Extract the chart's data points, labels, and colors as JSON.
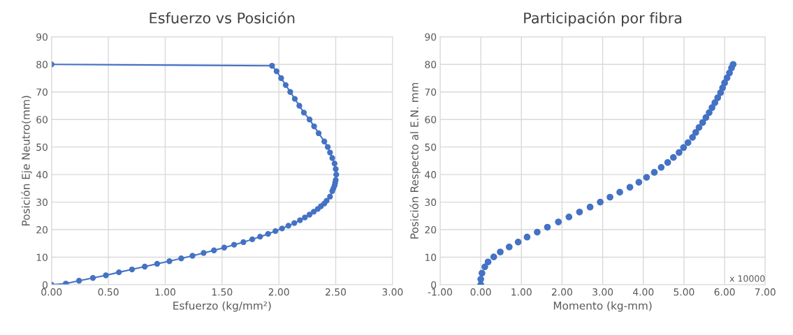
{
  "chart_data": [
    {
      "type": "line",
      "title": "Esfuerzo vs Posición",
      "xlabel": "Esfuerzo (kg/mm²)",
      "ylabel": "Posición Eje Neutro(mm)",
      "grid": true,
      "marker": "circle",
      "line_style": "solid",
      "xlim": [
        0,
        3
      ],
      "xticks": [
        {
          "value": 0,
          "label": "0.00"
        },
        {
          "value": 0.5,
          "label": "0.50"
        },
        {
          "value": 1,
          "label": "1.00"
        },
        {
          "value": 1.5,
          "label": "1.50"
        },
        {
          "value": 2,
          "label": "2.00"
        },
        {
          "value": 2.5,
          "label": "2.50"
        },
        {
          "value": 3,
          "label": "3.00"
        }
      ],
      "ylim": [
        0,
        90
      ],
      "yticks": [
        0,
        10,
        20,
        30,
        40,
        50,
        60,
        70,
        80,
        90
      ],
      "series": [
        {
          "color": "#4472c4",
          "x": [
            0,
            0.126,
            0.242,
            0.364,
            0.478,
            0.593,
            0.708,
            0.82,
            0.929,
            1.037,
            1.141,
            1.24,
            1.338,
            1.429,
            1.519,
            1.606,
            1.688,
            1.766,
            1.835,
            1.905,
            1.97,
            2.028,
            2.084,
            2.136,
            2.186,
            2.229,
            2.27,
            2.307,
            2.342,
            2.37,
            2.4,
            2.42,
            2.45,
            2.47,
            2.48,
            2.49,
            2.495,
            2.5,
            2.505,
            2.5,
            2.49,
            2.47,
            2.45,
            2.43,
            2.4,
            2.35,
            2.31,
            2.27,
            2.22,
            2.18,
            2.14,
            2.1,
            2.06,
            2.02,
            1.98,
            1.94,
            0
          ],
          "values": [
            0,
            0.43,
            1.45,
            2.48,
            3.42,
            4.53,
            5.56,
            6.58,
            7.61,
            8.55,
            9.57,
            10.51,
            11.54,
            12.48,
            13.5,
            14.53,
            15.47,
            16.5,
            17.44,
            18.46,
            19.49,
            20.43,
            21.45,
            22.39,
            23.42,
            24.44,
            25.47,
            26.5,
            27.52,
            28.5,
            29.5,
            30.5,
            32,
            34,
            35,
            36,
            37,
            38,
            40,
            42,
            44,
            46,
            48,
            50,
            52,
            55,
            57.5,
            60,
            62.5,
            65,
            67.5,
            70,
            72.5,
            75,
            77.5,
            79.5,
            80
          ]
        }
      ]
    },
    {
      "type": "scatter",
      "title": "Participación por fibra",
      "xlabel": "Momento (kg-mm)",
      "ylabel": "Posición Respecto al E.N. mm",
      "grid": true,
      "marker": "circle",
      "annotations": [
        "x 10000"
      ],
      "xlim": [
        -1,
        7
      ],
      "xticks": [
        {
          "value": -1,
          "label": "-1.00"
        },
        {
          "value": 0,
          "label": "0.00"
        },
        {
          "value": 1,
          "label": "1.00"
        },
        {
          "value": 2,
          "label": "2.00"
        },
        {
          "value": 3,
          "label": "3.00"
        },
        {
          "value": 4,
          "label": "4.00"
        },
        {
          "value": 5,
          "label": "5.00"
        },
        {
          "value": 6,
          "label": "6.00"
        },
        {
          "value": 7,
          "label": "7.00"
        }
      ],
      "ylim": [
        0,
        90
      ],
      "yticks": [
        0,
        10,
        20,
        30,
        40,
        50,
        60,
        70,
        80,
        90
      ],
      "series": [
        {
          "color": "#4472c4",
          "x": [
            0,
            0,
            0.03,
            0.1,
            0.18,
            0.32,
            0.48,
            0.7,
            0.92,
            1.14,
            1.39,
            1.64,
            1.91,
            2.17,
            2.43,
            2.69,
            2.94,
            3.18,
            3.42,
            3.67,
            3.89,
            4.08,
            4.27,
            4.44,
            4.6,
            4.74,
            4.88,
            4.99,
            5.1,
            5.21,
            5.29,
            5.37,
            5.46,
            5.54,
            5.62,
            5.69,
            5.76,
            5.83,
            5.9,
            5.95,
            6.0,
            6.06,
            6.12,
            6.17,
            6.21
          ],
          "values": [
            0,
            2,
            4.2,
            6.5,
            8.3,
            10.1,
            11.9,
            13.7,
            15.5,
            17.3,
            19.1,
            20.9,
            22.8,
            24.6,
            26.4,
            28.2,
            30,
            31.8,
            33.6,
            35.4,
            37.2,
            39,
            40.8,
            42.6,
            44.4,
            46.2,
            48,
            49.8,
            51.6,
            53.5,
            55.3,
            57.1,
            58.9,
            60.7,
            62.5,
            64.3,
            66.1,
            67.9,
            69.7,
            71.5,
            73.3,
            75.1,
            76.9,
            78.7,
            80
          ]
        }
      ]
    }
  ]
}
